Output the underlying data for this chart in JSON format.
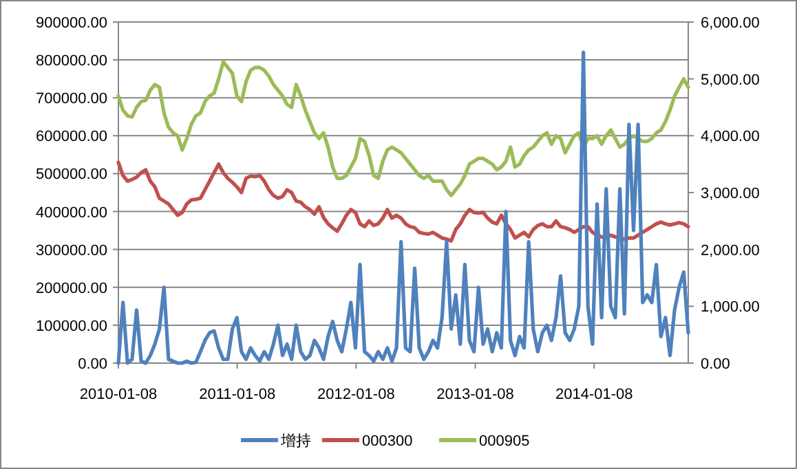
{
  "chart_data": {
    "type": "line",
    "x": [
      "2010-01-08",
      "2010-01-22",
      "2010-02-05",
      "2010-02-19",
      "2010-03-05",
      "2010-03-19",
      "2010-04-02",
      "2010-04-16",
      "2010-04-30",
      "2010-05-14",
      "2010-05-28",
      "2010-06-11",
      "2010-06-25",
      "2010-07-09",
      "2010-07-23",
      "2010-08-06",
      "2010-08-20",
      "2010-09-03",
      "2010-09-17",
      "2010-10-01",
      "2010-10-15",
      "2010-10-29",
      "2010-11-12",
      "2010-11-26",
      "2010-12-10",
      "2010-12-24",
      "2011-01-07",
      "2011-01-21",
      "2011-02-04",
      "2011-02-18",
      "2011-03-04",
      "2011-03-18",
      "2011-04-01",
      "2011-04-15",
      "2011-04-29",
      "2011-05-13",
      "2011-05-27",
      "2011-06-10",
      "2011-06-24",
      "2011-07-08",
      "2011-07-22",
      "2011-08-05",
      "2011-08-19",
      "2011-09-02",
      "2011-09-16",
      "2011-09-30",
      "2011-10-14",
      "2011-10-28",
      "2011-11-11",
      "2011-11-25",
      "2011-12-09",
      "2011-12-23",
      "2012-01-06",
      "2012-01-20",
      "2012-02-03",
      "2012-02-17",
      "2012-03-02",
      "2012-03-16",
      "2012-03-30",
      "2012-04-13",
      "2012-04-27",
      "2012-05-11",
      "2012-05-25",
      "2012-06-08",
      "2012-06-22",
      "2012-07-06",
      "2012-07-20",
      "2012-08-03",
      "2012-08-17",
      "2012-08-31",
      "2012-09-14",
      "2012-09-28",
      "2012-10-12",
      "2012-10-26",
      "2012-11-09",
      "2012-11-23",
      "2012-12-07",
      "2012-12-21",
      "2013-01-04",
      "2013-01-18",
      "2013-02-01",
      "2013-02-15",
      "2013-03-01",
      "2013-03-15",
      "2013-03-29",
      "2013-04-12",
      "2013-04-26",
      "2013-05-10",
      "2013-05-24",
      "2013-06-07",
      "2013-06-21",
      "2013-07-05",
      "2013-07-19",
      "2013-08-02",
      "2013-08-16",
      "2013-08-30",
      "2013-09-13",
      "2013-09-27",
      "2013-10-11",
      "2013-10-25",
      "2013-11-08",
      "2013-11-22",
      "2013-12-06",
      "2013-12-20",
      "2014-01-03",
      "2014-01-17",
      "2014-01-31",
      "2014-02-14",
      "2014-02-28",
      "2014-03-14",
      "2014-03-28",
      "2014-04-11",
      "2014-04-25",
      "2014-05-09",
      "2014-05-23",
      "2014-06-06",
      "2014-06-20",
      "2014-07-04",
      "2014-07-18",
      "2014-08-01",
      "2014-08-15",
      "2014-08-29",
      "2014-09-12",
      "2014-09-26",
      "2014-10-10",
      "2014-10-24"
    ],
    "series": [
      {
        "name": "增持",
        "color": "#4f81bd",
        "values": [
          0,
          160000,
          0,
          10000,
          140000,
          5000,
          0,
          20000,
          50000,
          90000,
          200000,
          10000,
          5000,
          0,
          0,
          5000,
          0,
          2000,
          30000,
          60000,
          80000,
          85000,
          40000,
          10000,
          10000,
          90000,
          120000,
          30000,
          10000,
          40000,
          20000,
          5000,
          30000,
          10000,
          50000,
          100000,
          20000,
          50000,
          10000,
          100000,
          30000,
          10000,
          20000,
          60000,
          40000,
          10000,
          70000,
          110000,
          60000,
          30000,
          90000,
          160000,
          40000,
          260000,
          30000,
          20000,
          5000,
          30000,
          10000,
          40000,
          5000,
          40000,
          320000,
          40000,
          30000,
          250000,
          40000,
          10000,
          30000,
          60000,
          40000,
          120000,
          320000,
          90000,
          180000,
          50000,
          260000,
          60000,
          30000,
          200000,
          50000,
          90000,
          30000,
          80000,
          40000,
          400000,
          60000,
          20000,
          70000,
          40000,
          320000,
          90000,
          30000,
          80000,
          100000,
          60000,
          120000,
          230000,
          80000,
          60000,
          90000,
          150000,
          820000,
          150000,
          50000,
          420000,
          120000,
          460000,
          150000,
          120000,
          460000,
          130000,
          630000,
          350000,
          630000,
          160000,
          180000,
          160000,
          260000,
          70000,
          120000,
          20000,
          140000,
          200000,
          240000,
          80000
        ]
      },
      {
        "name": "000300",
        "color": "#c0504d",
        "axis": "y2",
        "values": [
          3530,
          3300,
          3200,
          3230,
          3270,
          3350,
          3400,
          3200,
          3100,
          2900,
          2850,
          2800,
          2700,
          2600,
          2650,
          2800,
          2870,
          2880,
          2900,
          3050,
          3200,
          3350,
          3500,
          3350,
          3250,
          3180,
          3100,
          3000,
          3250,
          3290,
          3280,
          3300,
          3200,
          3050,
          2950,
          2900,
          2930,
          3050,
          3000,
          2850,
          2830,
          2750,
          2700,
          2620,
          2750,
          2560,
          2450,
          2380,
          2320,
          2450,
          2600,
          2700,
          2650,
          2450,
          2400,
          2500,
          2420,
          2450,
          2550,
          2700,
          2550,
          2600,
          2550,
          2450,
          2400,
          2380,
          2300,
          2280,
          2270,
          2300,
          2250,
          2200,
          2180,
          2150,
          2350,
          2450,
          2600,
          2700,
          2650,
          2640,
          2650,
          2550,
          2480,
          2450,
          2600,
          2450,
          2350,
          2200,
          2250,
          2300,
          2220,
          2350,
          2420,
          2450,
          2400,
          2400,
          2500,
          2400,
          2380,
          2350,
          2300,
          2350,
          2400,
          2400,
          2300,
          2250,
          2220,
          2200,
          2250,
          2220,
          2200,
          2180,
          2200,
          2200,
          2250,
          2300,
          2350,
          2400,
          2450,
          2480,
          2450,
          2430,
          2450,
          2470,
          2450,
          2400
        ]
      },
      {
        "name": "000905",
        "color": "#9bbb59",
        "axis": "y2",
        "values": [
          4700,
          4450,
          4350,
          4330,
          4500,
          4600,
          4620,
          4800,
          4900,
          4850,
          4400,
          4150,
          4050,
          4000,
          3750,
          3950,
          4200,
          4350,
          4400,
          4600,
          4700,
          4750,
          5000,
          5300,
          5200,
          5100,
          4700,
          4600,
          4950,
          5150,
          5200,
          5200,
          5150,
          5050,
          4900,
          4800,
          4700,
          4550,
          4500,
          4900,
          4700,
          4450,
          4250,
          4050,
          3950,
          4050,
          3800,
          3450,
          3250,
          3250,
          3300,
          3450,
          3600,
          3950,
          3900,
          3650,
          3300,
          3250,
          3550,
          3750,
          3800,
          3750,
          3700,
          3600,
          3500,
          3400,
          3300,
          3250,
          3300,
          3200,
          3200,
          3200,
          3050,
          2950,
          3050,
          3150,
          3300,
          3500,
          3550,
          3600,
          3600,
          3550,
          3500,
          3400,
          3450,
          3550,
          3800,
          3450,
          3500,
          3650,
          3750,
          3800,
          3900,
          4000,
          4050,
          3850,
          4000,
          3950,
          3700,
          3850,
          4000,
          4050,
          3800,
          3950,
          3950,
          4000,
          3850,
          4000,
          4100,
          3950,
          3800,
          3850,
          3950,
          4000,
          3950,
          3900,
          3900,
          3950,
          4050,
          4100,
          4250,
          4450,
          4700,
          4850,
          5000,
          4850
        ]
      }
    ],
    "xlim": [
      "2010-01-08",
      "2014-10-24"
    ],
    "xticks": [
      "2010-01-08",
      "2011-01-08",
      "2012-01-08",
      "2013-01-08",
      "2014-01-08"
    ],
    "ylim": [
      0,
      900000
    ],
    "yticks": [
      {
        "value": 0,
        "label": "0.00"
      },
      {
        "value": 100000,
        "label": "100000.00"
      },
      {
        "value": 200000,
        "label": "200000.00"
      },
      {
        "value": 300000,
        "label": "300000.00"
      },
      {
        "value": 400000,
        "label": "400000.00"
      },
      {
        "value": 500000,
        "label": "500000.00"
      },
      {
        "value": 600000,
        "label": "600000.00"
      },
      {
        "value": 700000,
        "label": "700000.00"
      },
      {
        "value": 800000,
        "label": "800000.00"
      },
      {
        "value": 900000,
        "label": "900000.00"
      }
    ],
    "y2lim": [
      0,
      6000
    ],
    "y2ticks": [
      {
        "value": 0,
        "label": "0.00"
      },
      {
        "value": 1000,
        "label": "1,000.00"
      },
      {
        "value": 2000,
        "label": "2,000.00"
      },
      {
        "value": 3000,
        "label": "3,000.00"
      },
      {
        "value": 4000,
        "label": "4,000.00"
      },
      {
        "value": 5000,
        "label": "5,000.00"
      },
      {
        "value": 6000,
        "label": "6,000.00"
      }
    ],
    "grid": "y",
    "legend": "bottom"
  }
}
